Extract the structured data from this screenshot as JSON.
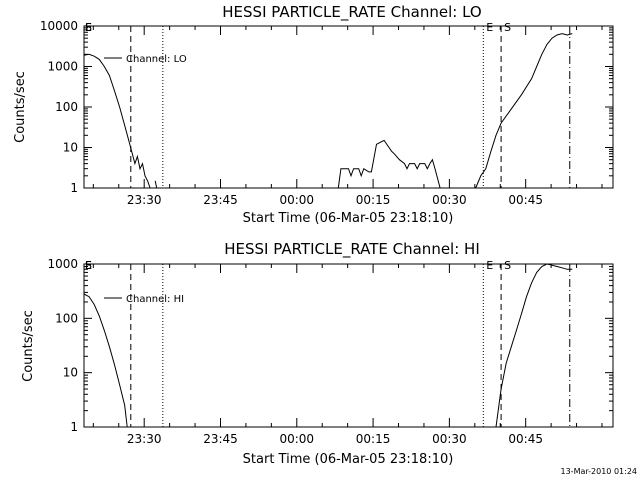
{
  "footer": {
    "timestamp": "13-Mar-2010 01:24"
  },
  "chart_data": [
    {
      "type": "line",
      "title": "HESSI PARTICLE_RATE Channel: LO",
      "xlabel": "Start Time (06-Mar-05 23:18:10)",
      "ylabel": "Counts/sec",
      "yscale": "log",
      "ylim": [
        1,
        10000
      ],
      "y_tick_labels": [
        "1",
        "10",
        "100",
        "1000",
        "10000"
      ],
      "x_tick_labels": [
        "23:30",
        "23:45",
        "00:00",
        "00:15",
        "00:30",
        "00:45"
      ],
      "x_unit": "minutes since 23:18:10",
      "xlim": [
        0,
        104
      ],
      "grid": false,
      "legend": {
        "position": "top-left",
        "label": "Channel: LO"
      },
      "markers": [
        {
          "label": "E",
          "x": 0,
          "style": "dotted"
        },
        {
          "label": "S",
          "x": 0,
          "style": "dashed"
        },
        {
          "label": "",
          "x": 9.2,
          "style": "dashed"
        },
        {
          "label": "",
          "x": 15.5,
          "style": "dotted"
        },
        {
          "label": "E",
          "x": 78.5,
          "style": "dotted"
        },
        {
          "label": "S",
          "x": 82,
          "style": "dashed"
        },
        {
          "label": "",
          "x": 95.5,
          "style": "dashdot"
        }
      ],
      "segments": [
        [
          [
            0,
            1900
          ],
          [
            1,
            2000
          ],
          [
            2,
            1800
          ],
          [
            3,
            1500
          ],
          [
            4,
            1000
          ],
          [
            5,
            600
          ],
          [
            6,
            250
          ],
          [
            7,
            100
          ],
          [
            8,
            35
          ],
          [
            9,
            12
          ],
          [
            10,
            4
          ],
          [
            10.5,
            6
          ],
          [
            11,
            3
          ],
          [
            11.5,
            4
          ],
          [
            12,
            2
          ],
          [
            12.5,
            1.5
          ],
          [
            13,
            1
          ]
        ],
        [
          [
            14,
            1.5
          ],
          [
            14.3,
            1
          ]
        ],
        [
          [
            50,
            1
          ],
          [
            50.5,
            3
          ],
          [
            52,
            3
          ],
          [
            52.5,
            2
          ],
          [
            53,
            3
          ],
          [
            54,
            3
          ],
          [
            54.5,
            2
          ],
          [
            55,
            3
          ],
          [
            56,
            2.5
          ],
          [
            56.5,
            2.5
          ],
          [
            57.5,
            12
          ],
          [
            59,
            15
          ],
          [
            60.5,
            8
          ],
          [
            61,
            7
          ],
          [
            62,
            5
          ],
          [
            63,
            4
          ],
          [
            63.5,
            3
          ],
          [
            64,
            4
          ],
          [
            65,
            4
          ],
          [
            65.5,
            3
          ],
          [
            66,
            4
          ],
          [
            67,
            4
          ],
          [
            67.5,
            3
          ],
          [
            68,
            4
          ],
          [
            68.5,
            5
          ],
          [
            69,
            3
          ],
          [
            70,
            1
          ]
        ],
        [
          [
            77,
            1
          ],
          [
            78,
            2
          ],
          [
            79,
            3
          ],
          [
            80,
            8
          ],
          [
            81,
            20
          ],
          [
            82,
            40
          ],
          [
            84,
            90
          ],
          [
            86,
            200
          ],
          [
            88,
            500
          ],
          [
            89,
            1000
          ],
          [
            90,
            2000
          ],
          [
            91,
            3500
          ],
          [
            92,
            5000
          ],
          [
            93,
            6000
          ],
          [
            94,
            6500
          ],
          [
            95,
            6000
          ],
          [
            96,
            6500
          ]
        ]
      ]
    },
    {
      "type": "line",
      "title": "HESSI PARTICLE_RATE Channel: HI",
      "xlabel": "Start Time (06-Mar-05 23:18:10)",
      "ylabel": "Counts/sec",
      "yscale": "log",
      "ylim": [
        1,
        1000
      ],
      "y_tick_labels": [
        "1",
        "10",
        "100",
        "1000"
      ],
      "x_tick_labels": [
        "23:30",
        "23:45",
        "00:00",
        "00:15",
        "00:30",
        "00:45"
      ],
      "x_unit": "minutes since 23:18:10",
      "xlim": [
        0,
        104
      ],
      "grid": false,
      "legend": {
        "position": "top-left",
        "label": "Channel: HI"
      },
      "markers": [
        {
          "label": "E",
          "x": 0,
          "style": "dotted"
        },
        {
          "label": "S",
          "x": 0,
          "style": "dashed"
        },
        {
          "label": "",
          "x": 9.2,
          "style": "dashed"
        },
        {
          "label": "",
          "x": 15.5,
          "style": "dotted"
        },
        {
          "label": "E",
          "x": 78.5,
          "style": "dotted"
        },
        {
          "label": "S",
          "x": 82,
          "style": "dashed"
        },
        {
          "label": "",
          "x": 95.5,
          "style": "dashdot"
        }
      ],
      "segments": [
        [
          [
            0,
            280
          ],
          [
            1,
            250
          ],
          [
            2,
            180
          ],
          [
            3,
            110
          ],
          [
            4,
            60
          ],
          [
            5,
            30
          ],
          [
            6,
            14
          ],
          [
            7,
            6
          ],
          [
            8,
            2.5
          ],
          [
            8.5,
            1
          ]
        ],
        [
          [
            81,
            1
          ],
          [
            82,
            5
          ],
          [
            83,
            15
          ],
          [
            84,
            30
          ],
          [
            85,
            60
          ],
          [
            86,
            120
          ],
          [
            87,
            250
          ],
          [
            88,
            450
          ],
          [
            89,
            700
          ],
          [
            90,
            900
          ],
          [
            91,
            1000
          ],
          [
            92,
            950
          ],
          [
            93,
            900
          ],
          [
            94,
            850
          ],
          [
            95,
            800
          ],
          [
            96,
            800
          ]
        ]
      ]
    }
  ]
}
